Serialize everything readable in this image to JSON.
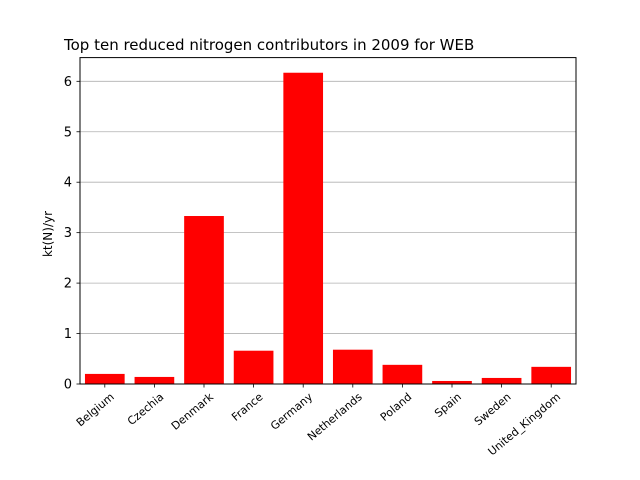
{
  "chart_data": {
    "type": "bar",
    "title": "Top ten reduced nitrogen contributors in 2009 for  WEB",
    "xlabel": "",
    "ylabel": "kt(N)/yr",
    "categories": [
      "Belgium",
      "Czechia",
      "Denmark",
      "France",
      "Germany",
      "Netherlands",
      "Poland",
      "Spain",
      "Sweden",
      "United_Kingdom"
    ],
    "values": [
      0.2,
      0.14,
      3.33,
      0.66,
      6.17,
      0.68,
      0.38,
      0.06,
      0.12,
      0.34
    ],
    "ylim": [
      0,
      6.47
    ],
    "yticks": [
      0,
      1,
      2,
      3,
      4,
      5,
      6
    ],
    "grid": "horizontal",
    "bar_color": "#ff0000"
  }
}
